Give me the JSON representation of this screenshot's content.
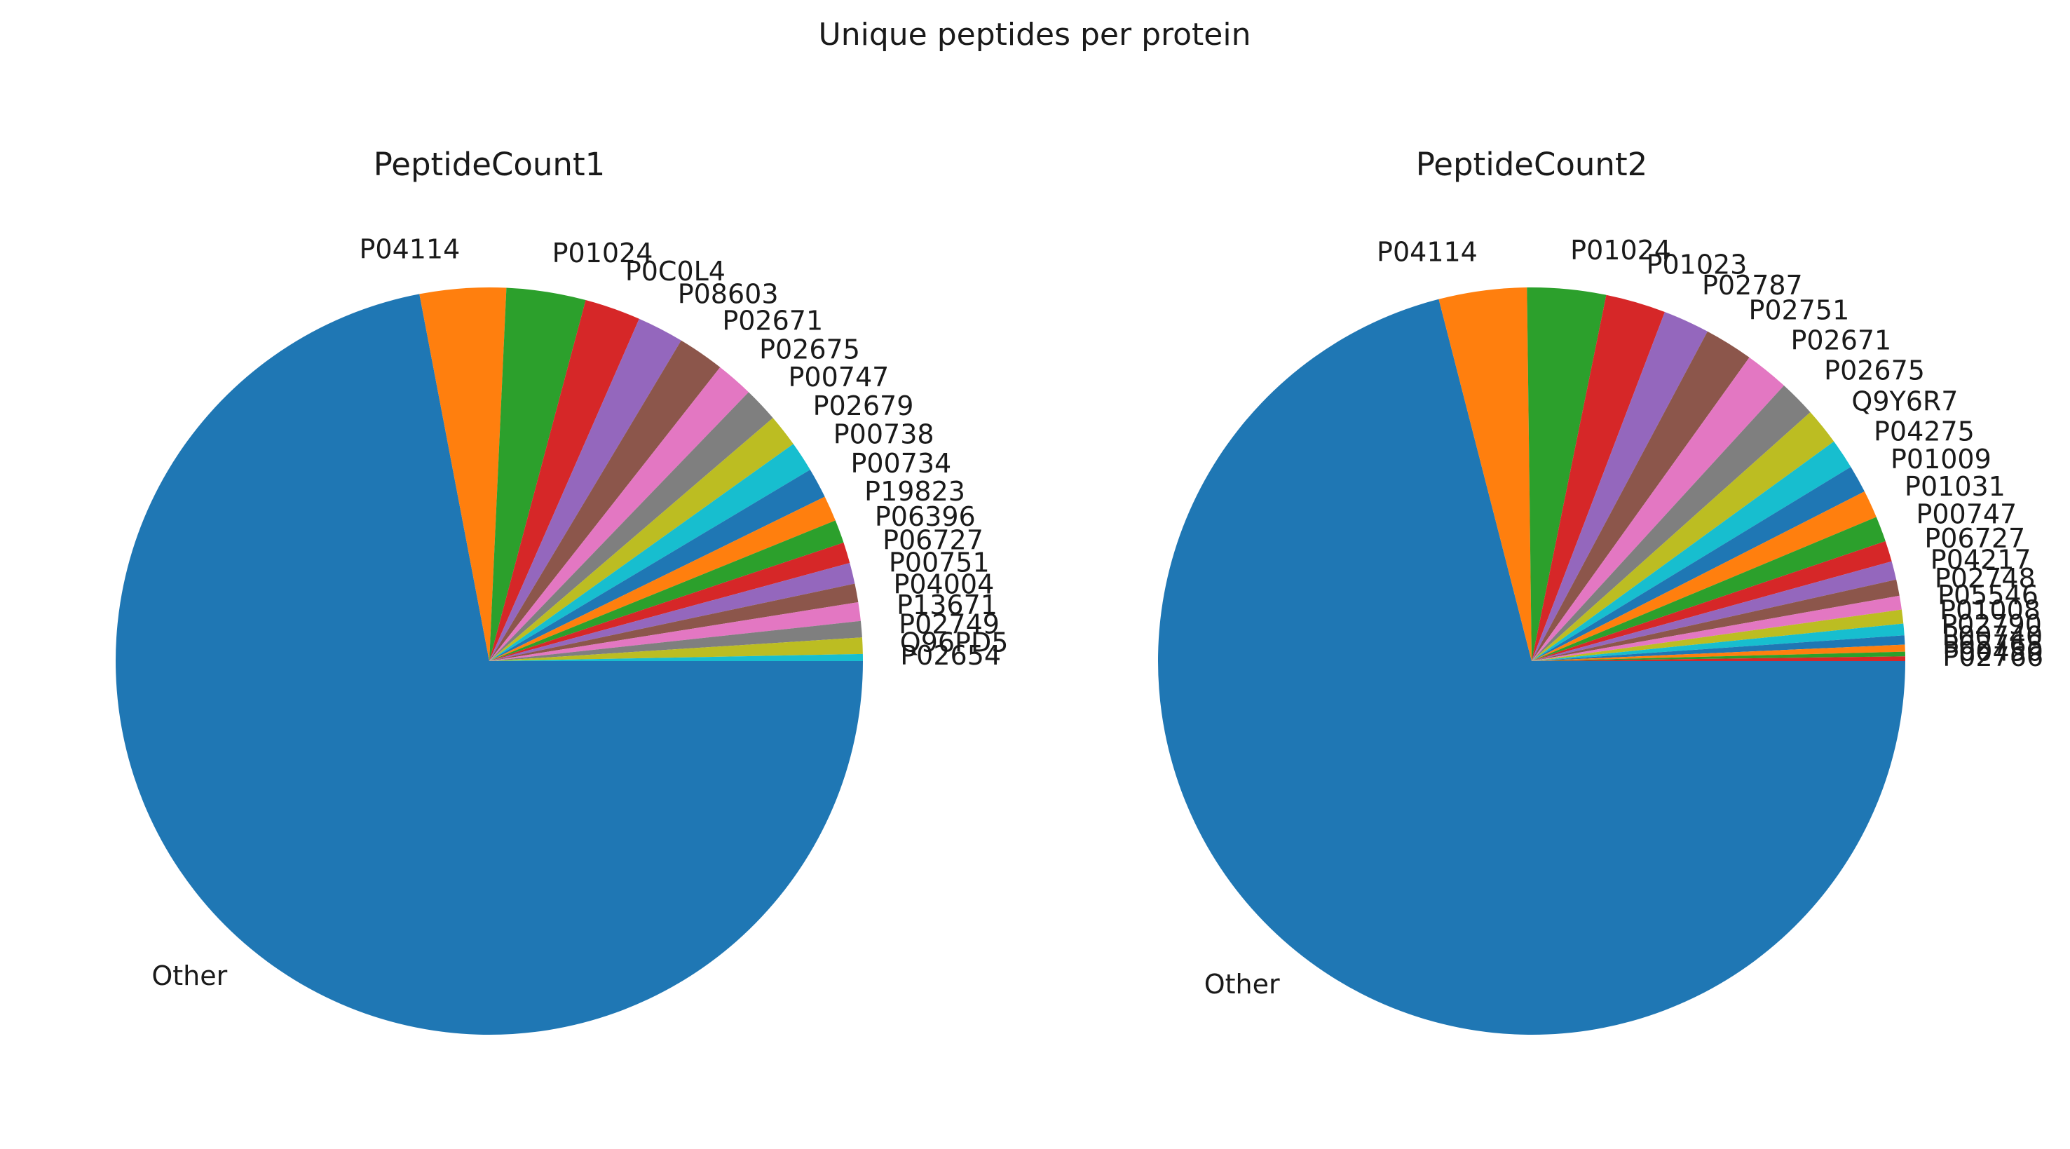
{
  "figure": {
    "suptitle": "Unique peptides per protein"
  },
  "chart_data": [
    {
      "type": "pie",
      "title": "PeptideCount1",
      "start_angle_deg": 0,
      "direction": "clockwise",
      "slices": [
        {
          "label": "Other",
          "value": 71.5,
          "color": "#1f77b4"
        },
        {
          "label": "P04114",
          "value": 3.7,
          "color": "#ff7f0e"
        },
        {
          "label": "P01024",
          "value": 3.4,
          "color": "#2ca02c"
        },
        {
          "label": "P0C0L4",
          "value": 2.4,
          "color": "#d62728"
        },
        {
          "label": "P08603",
          "value": 2.0,
          "color": "#9467bd"
        },
        {
          "label": "P02671",
          "value": 2.0,
          "color": "#8c564b"
        },
        {
          "label": "P02675",
          "value": 1.6,
          "color": "#e377c2"
        },
        {
          "label": "P00747",
          "value": 1.5,
          "color": "#7f7f7f"
        },
        {
          "label": "P02679",
          "value": 1.4,
          "color": "#bcbd22"
        },
        {
          "label": "P00738",
          "value": 1.3,
          "color": "#17becf"
        },
        {
          "label": "P00734",
          "value": 1.3,
          "color": "#1f77b4"
        },
        {
          "label": "P19823",
          "value": 1.1,
          "color": "#ff7f0e"
        },
        {
          "label": "P06396",
          "value": 1.0,
          "color": "#2ca02c"
        },
        {
          "label": "P06727",
          "value": 0.9,
          "color": "#d62728"
        },
        {
          "label": "P00751",
          "value": 0.9,
          "color": "#9467bd"
        },
        {
          "label": "P04004",
          "value": 0.8,
          "color": "#8c564b"
        },
        {
          "label": "P13671",
          "value": 0.8,
          "color": "#e377c2"
        },
        {
          "label": "P02749",
          "value": 0.7,
          "color": "#7f7f7f"
        },
        {
          "label": "Q96PD5",
          "value": 0.7,
          "color": "#bcbd22"
        },
        {
          "label": "P02654",
          "value": 0.3,
          "color": "#17becf"
        }
      ]
    },
    {
      "type": "pie",
      "title": "PeptideCount2",
      "start_angle_deg": 0,
      "direction": "clockwise",
      "slices": [
        {
          "label": "Other",
          "value": 71.0,
          "color": "#1f77b4"
        },
        {
          "label": "P04114",
          "value": 3.8,
          "color": "#ff7f0e"
        },
        {
          "label": "P01024",
          "value": 3.4,
          "color": "#2ca02c"
        },
        {
          "label": "P01023",
          "value": 2.6,
          "color": "#d62728"
        },
        {
          "label": "P02787",
          "value": 2.0,
          "color": "#9467bd"
        },
        {
          "label": "P02751",
          "value": 2.1,
          "color": "#8c564b"
        },
        {
          "label": "P02671",
          "value": 1.9,
          "color": "#e377c2"
        },
        {
          "label": "P02675",
          "value": 1.6,
          "color": "#7f7f7f"
        },
        {
          "label": "Q9Y6R7",
          "value": 1.6,
          "color": "#bcbd22"
        },
        {
          "label": "P04275",
          "value": 1.3,
          "color": "#17becf"
        },
        {
          "label": "P01009",
          "value": 1.2,
          "color": "#1f77b4"
        },
        {
          "label": "P01031",
          "value": 1.2,
          "color": "#ff7f0e"
        },
        {
          "label": "P00747",
          "value": 1.1,
          "color": "#2ca02c"
        },
        {
          "label": "P06727",
          "value": 0.9,
          "color": "#d62728"
        },
        {
          "label": "P04217",
          "value": 0.8,
          "color": "#9467bd"
        },
        {
          "label": "P02748",
          "value": 0.7,
          "color": "#8c564b"
        },
        {
          "label": "P05546",
          "value": 0.6,
          "color": "#e377c2"
        },
        {
          "label": "P01008",
          "value": 0.6,
          "color": "#bcbd22"
        },
        {
          "label": "P02790",
          "value": 0.5,
          "color": "#17becf"
        },
        {
          "label": "P00740",
          "value": 0.4,
          "color": "#1f77b4"
        },
        {
          "label": "P02768",
          "value": 0.3,
          "color": "#ff7f0e"
        },
        {
          "label": "P00450",
          "value": 0.2,
          "color": "#2ca02c"
        },
        {
          "label": "P02766",
          "value": 0.2,
          "color": "#d62728"
        }
      ]
    }
  ]
}
